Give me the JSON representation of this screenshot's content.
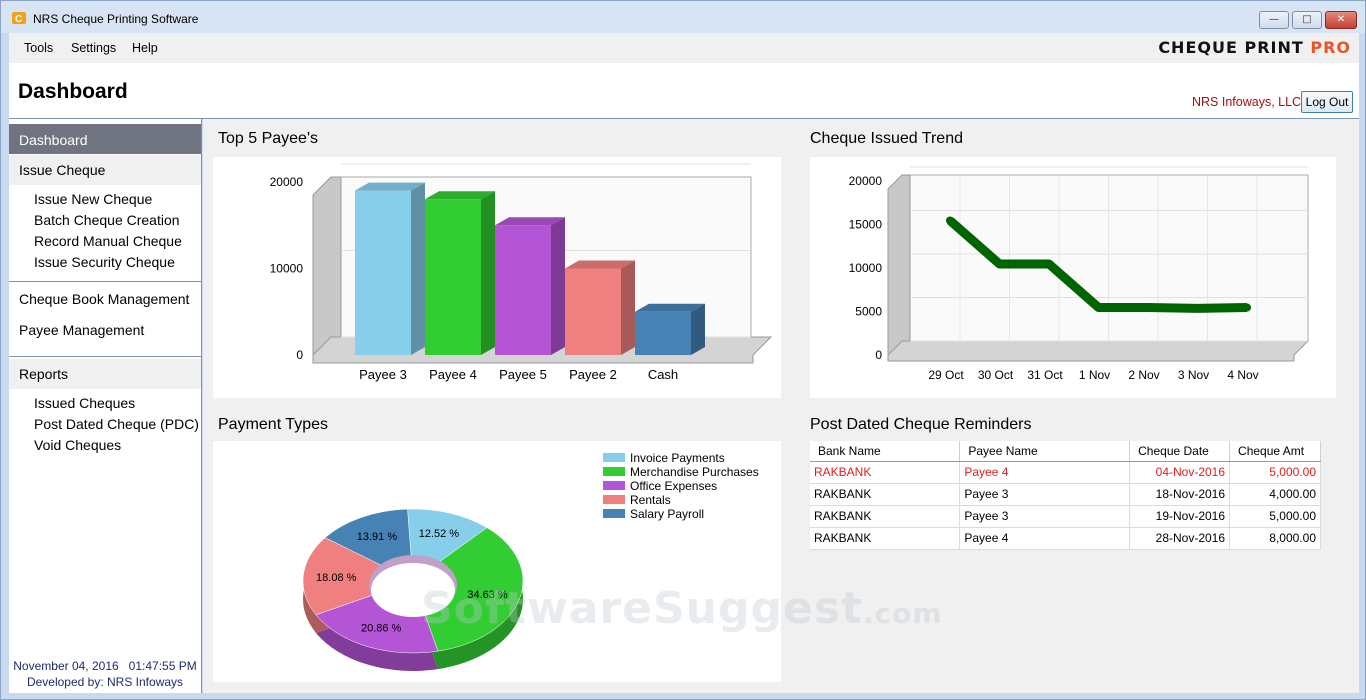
{
  "window": {
    "title": "NRS Cheque Printing Software"
  },
  "menu": {
    "items": [
      "Tools",
      "Settings",
      "Help"
    ]
  },
  "brand": {
    "main": "CHEQUE PRINT ",
    "accent": "PRO",
    "accent_color": "#e8542c"
  },
  "header": {
    "title": "Dashboard",
    "company": "NRS Infoways, LLC",
    "logout_label": "Log Out"
  },
  "sidebar": {
    "active": "Dashboard",
    "issue_section": "Issue Cheque",
    "issue_items": [
      "Issue New Cheque",
      "Batch Cheque Creation",
      "Record Manual Cheque",
      "Issue Security Cheque"
    ],
    "cheque_book": "Cheque Book Management",
    "payee_mgmt": "Payee Management",
    "reports_section": "Reports",
    "report_items": [
      "Issued Cheques",
      "Post Dated Cheque (PDC)",
      "Void Cheques"
    ],
    "footer_datetime": "November 04, 2016   01:47:55 PM",
    "footer_dev": "Developed by: NRS Infoways"
  },
  "panels": {
    "top_payees": "Top 5 Payee's",
    "trend": "Cheque Issued Trend",
    "payment_types": "Payment Types",
    "pdc": "Post Dated Cheque Reminders"
  },
  "chart_data": [
    {
      "type": "bar",
      "title": "Top 5 Payee's",
      "categories": [
        "Payee 3",
        "Payee 4",
        "Payee 5",
        "Payee 2",
        "Cash"
      ],
      "values": [
        19000,
        18000,
        15000,
        10000,
        5000
      ],
      "colors": [
        "#87ceeb",
        "#32cd32",
        "#b455d6",
        "#f08080",
        "#4682b4"
      ],
      "ylim": [
        0,
        20000
      ],
      "yticks": [
        0,
        10000,
        20000
      ]
    },
    {
      "type": "line",
      "title": "Cheque Issued Trend",
      "categories": [
        "29 Oct",
        "30 Oct",
        "31 Oct",
        "1 Nov",
        "2 Nov",
        "3 Nov",
        "4 Nov"
      ],
      "values": [
        15000,
        10000,
        10000,
        5000,
        5000,
        4900,
        5000
      ],
      "color": "#006400",
      "ylim": [
        0,
        20000
      ],
      "yticks": [
        0,
        5000,
        10000,
        15000,
        20000
      ]
    },
    {
      "type": "pie",
      "title": "Payment Types",
      "labels": [
        "Invoice Payments",
        "Merchandise Purchases",
        "Office Expenses",
        "Rentals",
        "Salary Payroll"
      ],
      "values": [
        12.52,
        34.63,
        20.86,
        18.08,
        13.91
      ],
      "value_labels": [
        "12.52 %",
        "34.63 %",
        "20.86 %",
        "18.08 %",
        "13.91 %"
      ],
      "colors": [
        "#87ceeb",
        "#32cd32",
        "#b455d6",
        "#f08080",
        "#4682b4"
      ],
      "legend": "top-right"
    }
  ],
  "pdc_table": {
    "columns": [
      "Bank Name",
      "Payee Name",
      "Cheque Date",
      "Cheque Amt"
    ],
    "rows": [
      [
        "RAKBANK",
        "Payee 4",
        "04-Nov-2016",
        "5,000.00"
      ],
      [
        "RAKBANK",
        "Payee 3",
        "18-Nov-2016",
        "4,000.00"
      ],
      [
        "RAKBANK",
        "Payee 3",
        "19-Nov-2016",
        "5,000.00"
      ],
      [
        "RAKBANK",
        "Payee 4",
        "28-Nov-2016",
        "8,000.00"
      ]
    ]
  },
  "watermark": {
    "main": "SoftwareSuggest",
    "suffix": ".com"
  }
}
